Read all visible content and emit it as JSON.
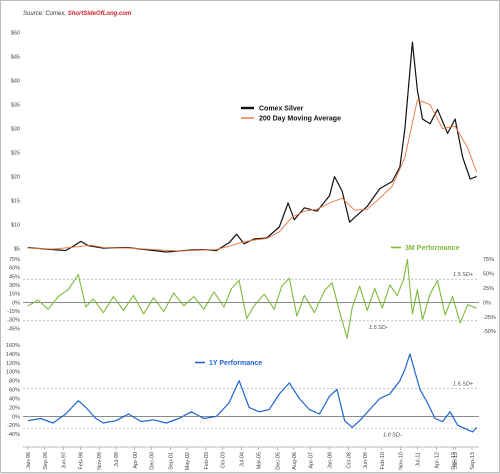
{
  "source": {
    "prefix": "Source: Comex, ",
    "link": "ShortSideOfLong.com"
  },
  "colors": {
    "silver": "#111111",
    "ma": "#e8743b",
    "perf3m": "#7dbb3a",
    "perf1y": "#1f63d6",
    "grid": "#9a9a9a"
  },
  "chart_data": [
    {
      "type": "line",
      "panel": "price",
      "ylim": [
        2,
        52
      ],
      "yticks": [
        "$5",
        "$10",
        "$15",
        "$20",
        "$25",
        "$30",
        "$35",
        "$40",
        "$45",
        "$50"
      ],
      "ytick_values": [
        5,
        10,
        15,
        20,
        25,
        30,
        35,
        40,
        45,
        50
      ],
      "legend": {
        "placement": "center-right",
        "entries": [
          "Comex Silver",
          "200 Day Moving Average"
        ]
      },
      "series": [
        {
          "name": "Comex Silver",
          "x": [
            1996.0,
            1996.5,
            1997.0,
            1997.5,
            1997.8,
            1998.1,
            1998.4,
            1999.0,
            1999.5,
            2000.0,
            2000.5,
            2001.0,
            2001.5,
            2002.0,
            2002.5,
            2003.0,
            2003.5,
            2004.0,
            2004.3,
            2004.6,
            2005.0,
            2005.5,
            2006.0,
            2006.35,
            2006.6,
            2007.0,
            2007.5,
            2008.0,
            2008.2,
            2008.5,
            2008.8,
            2009.0,
            2009.5,
            2010.0,
            2010.5,
            2010.8,
            2011.0,
            2011.3,
            2011.5,
            2011.7,
            2012.0,
            2012.3,
            2012.7,
            2013.0,
            2013.3,
            2013.6,
            2013.85
          ],
          "y": [
            5.2,
            5.0,
            4.8,
            4.6,
            5.5,
            6.5,
            5.6,
            5.1,
            5.2,
            5.2,
            4.9,
            4.6,
            4.3,
            4.5,
            4.7,
            4.8,
            4.6,
            6.2,
            8.0,
            6.0,
            7.0,
            7.2,
            9.5,
            14.5,
            11.0,
            13.5,
            12.8,
            16.0,
            20.0,
            17.0,
            10.5,
            11.5,
            13.8,
            17.5,
            19.0,
            22.0,
            30.0,
            48.0,
            38.0,
            32.0,
            31.0,
            34.0,
            29.0,
            32.0,
            24.0,
            19.5,
            20.0
          ]
        },
        {
          "name": "200 Day Moving Average",
          "x": [
            1996.0,
            1997.0,
            1998.0,
            1998.5,
            1999.0,
            2000.0,
            2001.0,
            2002.0,
            2003.0,
            2003.5,
            2004.0,
            2004.5,
            2005.0,
            2005.5,
            2006.0,
            2006.5,
            2007.0,
            2007.5,
            2008.0,
            2008.5,
            2009.0,
            2009.5,
            2010.0,
            2010.5,
            2011.0,
            2011.5,
            2012.0,
            2012.5,
            2013.0,
            2013.5,
            2013.85
          ],
          "y": [
            5.1,
            4.9,
            5.4,
            5.7,
            5.2,
            5.1,
            4.8,
            4.5,
            4.7,
            4.8,
            5.5,
            6.3,
            6.8,
            7.1,
            8.5,
            11.5,
            12.8,
            13.2,
            14.5,
            15.5,
            13.0,
            13.2,
            15.5,
            18.0,
            24.0,
            36.0,
            35.0,
            30.0,
            30.5,
            26.0,
            21.0
          ]
        }
      ]
    },
    {
      "type": "line",
      "panel": "performance-3m",
      "title": "3M Performance",
      "ylim": [
        -60,
        75
      ],
      "yticks": [
        "-45%",
        "-30%",
        "-15%",
        "0%",
        "15%",
        "30%",
        "45%",
        "60%",
        "75%"
      ],
      "ytick_values": [
        -45,
        -30,
        -15,
        0,
        15,
        30,
        45,
        60,
        75
      ],
      "yticks_right": [
        "-50%",
        "-25%",
        "0%",
        "25%",
        "50%",
        "75%"
      ],
      "ytick_right_values": [
        -50,
        -25,
        0,
        25,
        50,
        75
      ],
      "annotations": [
        {
          "text": "1.5 SD+",
          "y": 40
        },
        {
          "text": "1.5 SD-",
          "y": -32
        }
      ],
      "series": [
        {
          "name": "3M Performance",
          "x": [
            1996.0,
            1996.4,
            1996.8,
            1997.2,
            1997.6,
            1998.0,
            1998.3,
            1998.6,
            1999.0,
            1999.4,
            1999.8,
            2000.2,
            2000.6,
            2001.0,
            2001.4,
            2001.8,
            2002.2,
            2002.6,
            2003.0,
            2003.4,
            2003.8,
            2004.1,
            2004.4,
            2004.7,
            2005.0,
            2005.4,
            2005.8,
            2006.1,
            2006.4,
            2006.7,
            2007.0,
            2007.4,
            2007.8,
            2008.1,
            2008.4,
            2008.7,
            2008.9,
            2009.2,
            2009.5,
            2009.8,
            2010.1,
            2010.4,
            2010.7,
            2010.95,
            2011.1,
            2011.3,
            2011.5,
            2011.7,
            2012.0,
            2012.3,
            2012.6,
            2012.9,
            2013.2,
            2013.5,
            2013.85
          ],
          "y": [
            -6,
            4,
            -12,
            10,
            22,
            48,
            -8,
            6,
            -18,
            10,
            -14,
            12,
            -20,
            8,
            -16,
            16,
            -6,
            10,
            -12,
            18,
            -8,
            24,
            38,
            -28,
            -6,
            14,
            -12,
            28,
            42,
            -24,
            12,
            -18,
            20,
            34,
            -16,
            -62,
            -10,
            28,
            -14,
            24,
            -10,
            30,
            12,
            40,
            74,
            -20,
            22,
            -30,
            14,
            38,
            -22,
            10,
            -36,
            -4,
            -10
          ]
        }
      ]
    },
    {
      "type": "line",
      "panel": "performance-1y",
      "title": "1Y Performance",
      "ylim": [
        -60,
        160
      ],
      "yticks": [
        "-40%",
        "-20%",
        "0%",
        "20%",
        "40%",
        "60%",
        "80%",
        "100%",
        "120%",
        "140%",
        "160%"
      ],
      "ytick_values": [
        -40,
        -20,
        0,
        20,
        40,
        60,
        80,
        100,
        120,
        140,
        160
      ],
      "annotations": [
        {
          "text": "1.5 SD+",
          "y": 62
        },
        {
          "text": "1.0 SD-",
          "y": -28
        }
      ],
      "series": [
        {
          "name": "1Y Performance",
          "x": [
            1996.0,
            1996.5,
            1997.0,
            1997.5,
            1998.0,
            1998.3,
            1998.7,
            1999.0,
            1999.5,
            2000.0,
            2000.5,
            2001.0,
            2001.5,
            2002.0,
            2002.5,
            2003.0,
            2003.5,
            2004.0,
            2004.4,
            2004.8,
            2005.2,
            2005.6,
            2006.0,
            2006.4,
            2006.8,
            2007.2,
            2007.6,
            2008.0,
            2008.3,
            2008.6,
            2008.9,
            2009.2,
            2009.6,
            2010.0,
            2010.4,
            2010.8,
            2011.0,
            2011.2,
            2011.4,
            2011.6,
            2011.9,
            2012.2,
            2012.5,
            2012.8,
            2013.1,
            2013.4,
            2013.7,
            2013.85
          ],
          "y": [
            -10,
            -5,
            -15,
            5,
            35,
            20,
            -5,
            -15,
            -10,
            5,
            -12,
            -8,
            -15,
            -5,
            10,
            -5,
            0,
            30,
            80,
            20,
            10,
            15,
            50,
            75,
            40,
            15,
            5,
            45,
            60,
            -10,
            -25,
            -10,
            15,
            40,
            50,
            80,
            105,
            140,
            100,
            60,
            30,
            -5,
            -12,
            10,
            -20,
            -28,
            -35,
            -25
          ]
        }
      ]
    }
  ],
  "x_axis": {
    "xlim": [
      1995.8,
      2013.95
    ],
    "labels": [
      {
        "t": "Jan-96",
        "x": 1996.0
      },
      {
        "t": "Sep-96",
        "x": 1996.67
      },
      {
        "t": "Jun-97",
        "x": 1997.42
      },
      {
        "t": "Feb-98",
        "x": 1998.08
      },
      {
        "t": "Nov-98",
        "x": 1998.83
      },
      {
        "t": "Jul-99",
        "x": 1999.5
      },
      {
        "t": "Apr-00",
        "x": 2000.25
      },
      {
        "t": "Dec-00",
        "x": 2000.92
      },
      {
        "t": "Sep-01",
        "x": 2001.67
      },
      {
        "t": "May-02",
        "x": 2002.33
      },
      {
        "t": "Feb-03",
        "x": 2003.08
      },
      {
        "t": "Oct-03",
        "x": 2003.75
      },
      {
        "t": "Jul-04",
        "x": 2004.5
      },
      {
        "t": "Mar-05",
        "x": 2005.17
      },
      {
        "t": "Dec-05",
        "x": 2005.92
      },
      {
        "t": "Aug-06",
        "x": 2006.58
      },
      {
        "t": "Apr-07",
        "x": 2007.25
      },
      {
        "t": "Jan-08",
        "x": 2008.0
      },
      {
        "t": "Oct-08",
        "x": 2008.75
      },
      {
        "t": "Jun-09",
        "x": 2009.42
      },
      {
        "t": "Feb-10",
        "x": 2010.08
      },
      {
        "t": "Nov-10",
        "x": 2010.83
      },
      {
        "t": "Jul-11",
        "x": 2011.5
      },
      {
        "t": "Apr-12",
        "x": 2012.25
      },
      {
        "t": "Dec-12",
        "x": 2012.92
      },
      {
        "t": "Jan-13",
        "x": 2013.0
      },
      {
        "t": "Sep-13",
        "x": 2013.67
      }
    ]
  }
}
